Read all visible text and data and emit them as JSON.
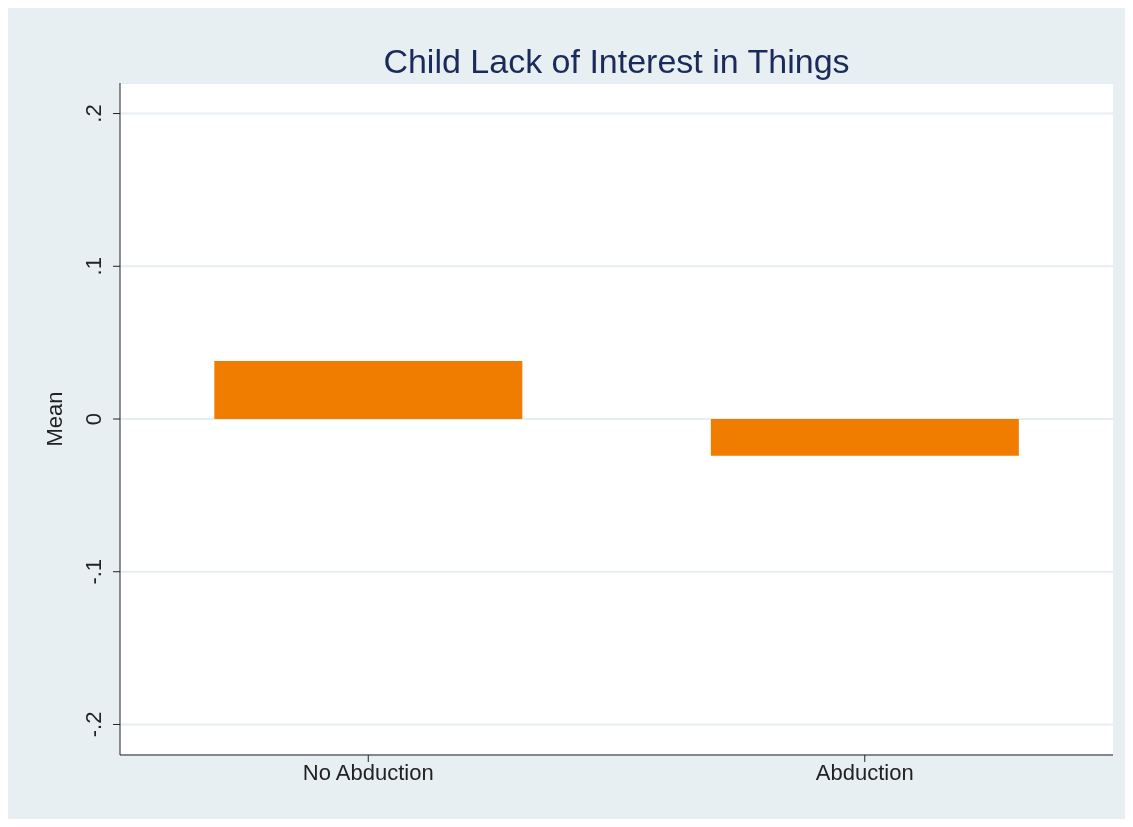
{
  "chart_data": {
    "type": "bar",
    "title": "Child Lack of Interest in Things",
    "ylabel": "Mean",
    "categories": [
      "No Abduction",
      "Abduction"
    ],
    "values": [
      0.038,
      -0.024
    ],
    "color": "#f07c00",
    "ylim": [
      -0.22,
      0.22
    ],
    "yticks": [
      {
        "value": -0.2,
        "label": "-.2"
      },
      {
        "value": -0.1,
        "label": "-.1"
      },
      0,
      {
        "value": 0.1,
        "label": ".1"
      },
      {
        "value": 0.2,
        "label": ".2"
      }
    ],
    "grid": "y"
  }
}
